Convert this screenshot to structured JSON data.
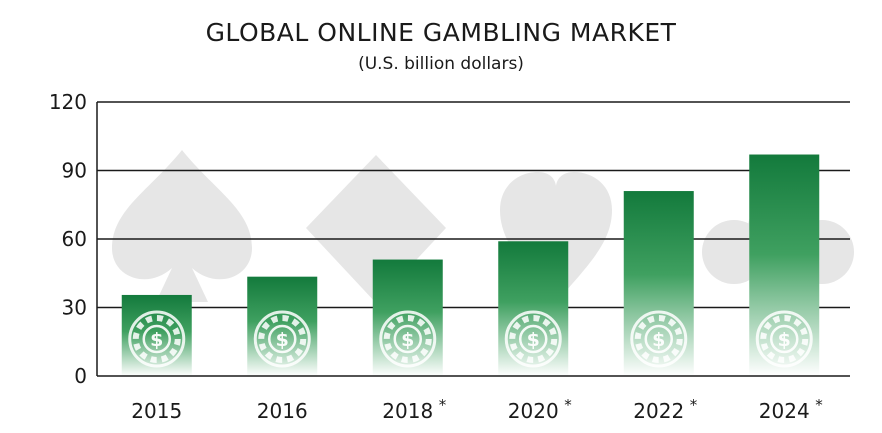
{
  "chart_data": {
    "type": "bar",
    "title": "GLOBAL ONLINE GAMBLING MARKET",
    "subtitle": "(U.S. billion dollars)",
    "categories": [
      "2015",
      "2016",
      "2018",
      "2020",
      "2022",
      "2024"
    ],
    "forecast_markers": [
      "",
      "",
      "*",
      "*",
      "*",
      "*"
    ],
    "values": [
      35.5,
      43.5,
      51,
      59,
      81,
      97
    ],
    "ylim": [
      0,
      120
    ],
    "yticks": [
      0,
      30,
      60,
      90,
      120
    ],
    "grid": true,
    "bar_color": "#1a8a45",
    "background_icons": [
      "spade-icon",
      "diamond-icon",
      "heart-icon",
      "club-icon"
    ],
    "bar_icon": "casino-chip-icon"
  }
}
